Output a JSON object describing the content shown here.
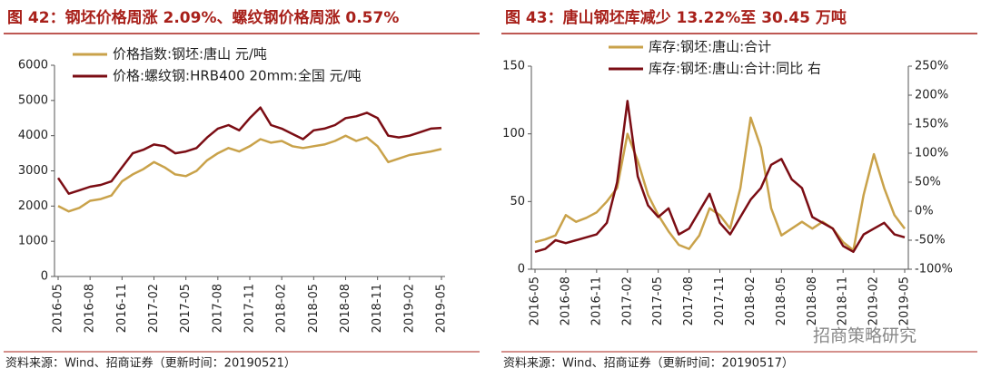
{
  "chart_data": [
    {
      "type": "line",
      "title": "图 42：钢坯价格周涨 2.09%、螺纹钢价格周涨 0.57%",
      "source": "资料来源：Wind、招商证券（更新时间：20190521）",
      "categories": [
        "2016-05",
        null,
        null,
        "2016-08",
        null,
        null,
        "2016-11",
        null,
        null,
        "2017-02",
        null,
        null,
        "2017-05",
        null,
        null,
        "2017-08",
        null,
        null,
        "2017-11",
        null,
        null,
        "2018-02",
        null,
        null,
        "2018-05",
        null,
        null,
        "2018-08",
        null,
        null,
        "2018-11",
        null,
        null,
        "2019-02",
        null,
        null,
        "2019-05"
      ],
      "series": [
        {
          "name": "价格指数:钢坯:唐山 元/吨",
          "color": "#c9a24a",
          "values": [
            2000,
            1850,
            1950,
            2150,
            2200,
            2300,
            2700,
            2900,
            3050,
            3250,
            3100,
            2900,
            2850,
            3000,
            3300,
            3500,
            3650,
            3550,
            3700,
            3900,
            3800,
            3850,
            3700,
            3650,
            3700,
            3750,
            3850,
            4000,
            3850,
            3950,
            3700,
            3250,
            3350,
            3450,
            3500,
            3550,
            3620
          ]
        },
        {
          "name": "价格:螺纹钢:HRB400 20mm:全国 元/吨",
          "color": "#7b0d14",
          "values": [
            2800,
            2350,
            2450,
            2550,
            2600,
            2700,
            3100,
            3500,
            3600,
            3750,
            3700,
            3500,
            3550,
            3650,
            3950,
            4200,
            4300,
            4150,
            4500,
            4800,
            4300,
            4200,
            4050,
            3900,
            4150,
            4200,
            4300,
            4500,
            4550,
            4650,
            4500,
            4000,
            3950,
            4000,
            4100,
            4200,
            4220
          ]
        }
      ],
      "ylim": [
        0,
        6000
      ],
      "yticks": [
        0,
        1000,
        2000,
        3000,
        4000,
        5000,
        6000
      ]
    },
    {
      "type": "line",
      "title": "图 43：唐山钢坯库减少 13.22%至 30.45 万吨",
      "source": "资料来源：Wind、招商证券（更新时间：20190517）",
      "categories": [
        "2016-05",
        null,
        null,
        "2016-08",
        null,
        null,
        "2016-11",
        null,
        null,
        "2017-02",
        null,
        null,
        "2017-05",
        null,
        null,
        "2017-08",
        null,
        null,
        "2017-11",
        null,
        null,
        "2018-02",
        null,
        null,
        "2018-05",
        null,
        null,
        "2018-08",
        null,
        null,
        "2018-11",
        null,
        null,
        "2019-02",
        null,
        null,
        "2019-05"
      ],
      "series": [
        {
          "name": "库存:钢坯:唐山:合计",
          "color": "#c9a24a",
          "values": [
            20,
            22,
            25,
            40,
            35,
            38,
            42,
            50,
            60,
            100,
            80,
            55,
            40,
            28,
            18,
            15,
            25,
            45,
            40,
            30,
            60,
            112,
            90,
            45,
            25,
            30,
            35,
            30,
            35,
            30,
            20,
            14,
            55,
            85,
            60,
            40,
            30
          ]
        },
        {
          "name": "库存:钢坯:唐山:合计:同比 右",
          "color": "#7b0d14",
          "axis": "y2",
          "values": [
            -70,
            -65,
            -50,
            -55,
            -50,
            -45,
            -40,
            -20,
            50,
            190,
            60,
            10,
            -10,
            5,
            -40,
            -30,
            0,
            30,
            -20,
            -40,
            -10,
            20,
            40,
            80,
            90,
            55,
            40,
            -10,
            -20,
            -30,
            -60,
            -70,
            -40,
            -30,
            -20,
            -40,
            -45
          ]
        }
      ],
      "ylim": [
        0,
        150
      ],
      "yticks": [
        0,
        50,
        100,
        150
      ],
      "y2lim": [
        -100,
        250
      ],
      "y2ticks": [
        {
          "value": -100,
          "label": "-100%"
        },
        {
          "value": -50,
          "label": "-50%"
        },
        {
          "value": 0,
          "label": "0%"
        },
        {
          "value": 50,
          "label": "50%"
        },
        {
          "value": 100,
          "label": "100%"
        },
        {
          "value": 150,
          "label": "150%"
        },
        {
          "value": 200,
          "label": "200%"
        },
        {
          "value": 250,
          "label": "250%"
        }
      ]
    }
  ],
  "watermark": "招商策略研究"
}
